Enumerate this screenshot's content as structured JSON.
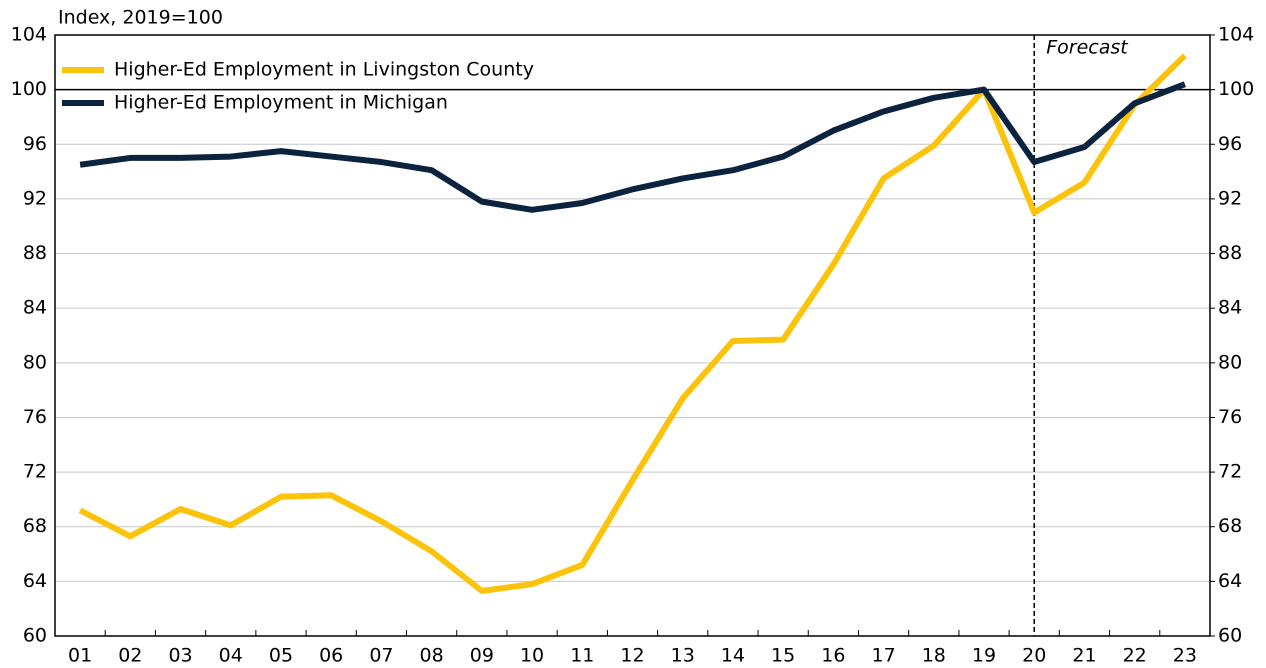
{
  "chart_data": {
    "type": "line",
    "y_label": "Index, 2019=100",
    "annotation": "Forecast",
    "forecast_from": "20",
    "reference_line": 100,
    "categories": [
      "01",
      "02",
      "03",
      "04",
      "05",
      "06",
      "07",
      "08",
      "09",
      "10",
      "11",
      "12",
      "13",
      "14",
      "15",
      "16",
      "17",
      "18",
      "19",
      "20",
      "21",
      "22",
      "23"
    ],
    "series": [
      {
        "name": "Higher-Ed Employment in Livingston County",
        "color": "#fcc30b",
        "values": [
          69.2,
          67.3,
          69.3,
          68.1,
          70.2,
          70.3,
          68.4,
          66.2,
          63.3,
          63.8,
          65.2,
          71.4,
          77.4,
          81.6,
          81.7,
          87.2,
          93.5,
          95.9,
          100,
          91.0,
          93.2,
          98.9,
          102.5
        ]
      },
      {
        "name": "Higher-Ed Employment in Michigan",
        "color": "#0c2340",
        "values": [
          94.5,
          95,
          95,
          95.1,
          95.5,
          95.1,
          94.7,
          94.1,
          91.8,
          91.2,
          91.7,
          92.7,
          93.5,
          94.1,
          95.1,
          97,
          98.4,
          99.4,
          100,
          94.7,
          95.8,
          99,
          100.4
        ]
      }
    ],
    "ylim": [
      60,
      104
    ],
    "yticks": [
      60,
      64,
      68,
      72,
      76,
      80,
      84,
      88,
      92,
      96,
      100,
      104
    ],
    "y2lim": [
      60,
      104
    ],
    "y2ticks": [
      60,
      64,
      68,
      72,
      76,
      80,
      84,
      88,
      92,
      96,
      100,
      104
    ],
    "grid": true,
    "legend": "top-left"
  }
}
